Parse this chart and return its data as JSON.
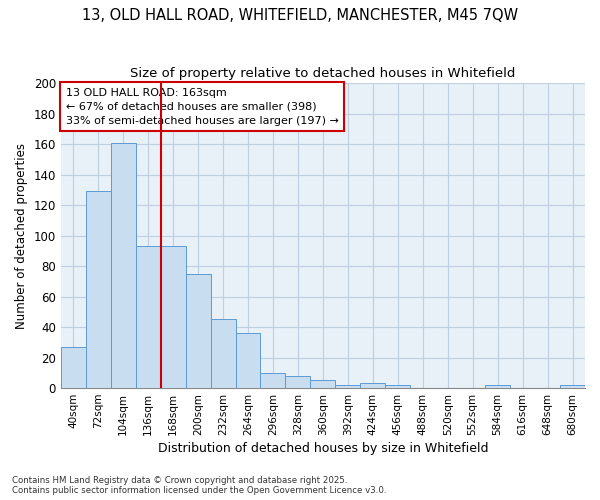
{
  "title_line1": "13, OLD HALL ROAD, WHITEFIELD, MANCHESTER, M45 7QW",
  "title_line2": "Size of property relative to detached houses in Whitefield",
  "xlabel": "Distribution of detached houses by size in Whitefield",
  "ylabel": "Number of detached properties",
  "categories": [
    "40sqm",
    "72sqm",
    "104sqm",
    "136sqm",
    "168sqm",
    "200sqm",
    "232sqm",
    "264sqm",
    "296sqm",
    "328sqm",
    "360sqm",
    "392sqm",
    "424sqm",
    "456sqm",
    "488sqm",
    "520sqm",
    "552sqm",
    "584sqm",
    "616sqm",
    "648sqm",
    "680sqm"
  ],
  "values": [
    27,
    129,
    161,
    93,
    93,
    75,
    45,
    36,
    10,
    8,
    5,
    2,
    3,
    2,
    0,
    0,
    0,
    2,
    0,
    0,
    2
  ],
  "bar_color": "#c8ddef",
  "bar_edge_color": "#5b9bd5",
  "vline_color": "#cc0000",
  "vline_x_index": 4,
  "annotation_text": "13 OLD HALL ROAD: 163sqm\n← 67% of detached houses are smaller (398)\n33% of semi-detached houses are larger (197) →",
  "annotation_box_facecolor": "#ffffff",
  "annotation_box_edgecolor": "#cc0000",
  "plot_bg_color": "#e8f0f8",
  "grid_color": "#c0cfe0",
  "footer_line1": "Contains HM Land Registry data © Crown copyright and database right 2025.",
  "footer_line2": "Contains public sector information licensed under the Open Government Licence v3.0.",
  "ylim": [
    0,
    200
  ],
  "yticks": [
    0,
    20,
    40,
    60,
    80,
    100,
    120,
    140,
    160,
    180,
    200
  ]
}
